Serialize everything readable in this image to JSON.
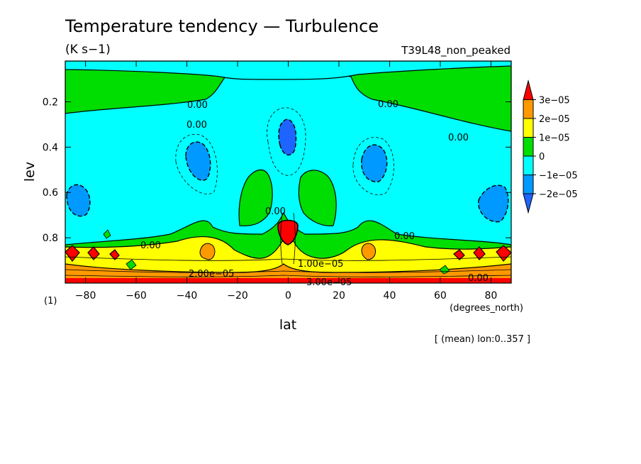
{
  "chart_data": {
    "type": "contour",
    "title": "Temperature tendency — Turbulence",
    "units": "(K s−1)",
    "run_label": "T39L48_non_peaked",
    "xlabel": "lat",
    "xunits": "(degrees_north)",
    "ylabel": "lev",
    "yunits": "(1)",
    "footnote": "[ (mean) lon:0..357 ]",
    "xlim": [
      -88,
      88
    ],
    "ylim": [
      1.0,
      0.02
    ],
    "x_ticks": [
      "−80",
      "−60",
      "−40",
      "−20",
      "0",
      "20",
      "40",
      "60",
      "80"
    ],
    "x_tick_values": [
      -80,
      -60,
      -40,
      -20,
      0,
      20,
      40,
      60,
      80
    ],
    "y_ticks": [
      "0.2",
      "0.4",
      "0.6",
      "0.8"
    ],
    "y_tick_values": [
      0.2,
      0.4,
      0.6,
      0.8
    ],
    "colorbar": {
      "labels": [
        "3e−05",
        "2e−05",
        "1e−05",
        "0",
        "−1e−05",
        "−2e−05"
      ],
      "colors": [
        "#ff0000",
        "#ff9900",
        "#ffff00",
        "#00dd00",
        "#00ffff",
        "#0099ff",
        "#1e64ff"
      ]
    },
    "contour_labels": [
      "0.00",
      "0.00",
      "0.00",
      "0.00",
      "0.00",
      "0.00",
      "0.00",
      "0.00",
      "1.00e−05",
      "2.00e−05",
      "3.00e−05"
    ]
  }
}
